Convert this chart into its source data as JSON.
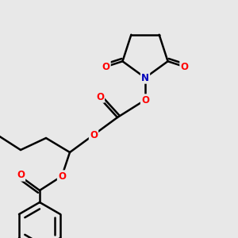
{
  "background_color": "#e8e8e8",
  "bond_color": "#000000",
  "O_color": "#ff0000",
  "N_color": "#0000bb",
  "bond_width": 1.8,
  "font_size_atom": 8.5,
  "figsize": [
    3.0,
    3.0
  ],
  "dpi": 100,
  "xlim": [
    0,
    300
  ],
  "ylim": [
    0,
    300
  ]
}
